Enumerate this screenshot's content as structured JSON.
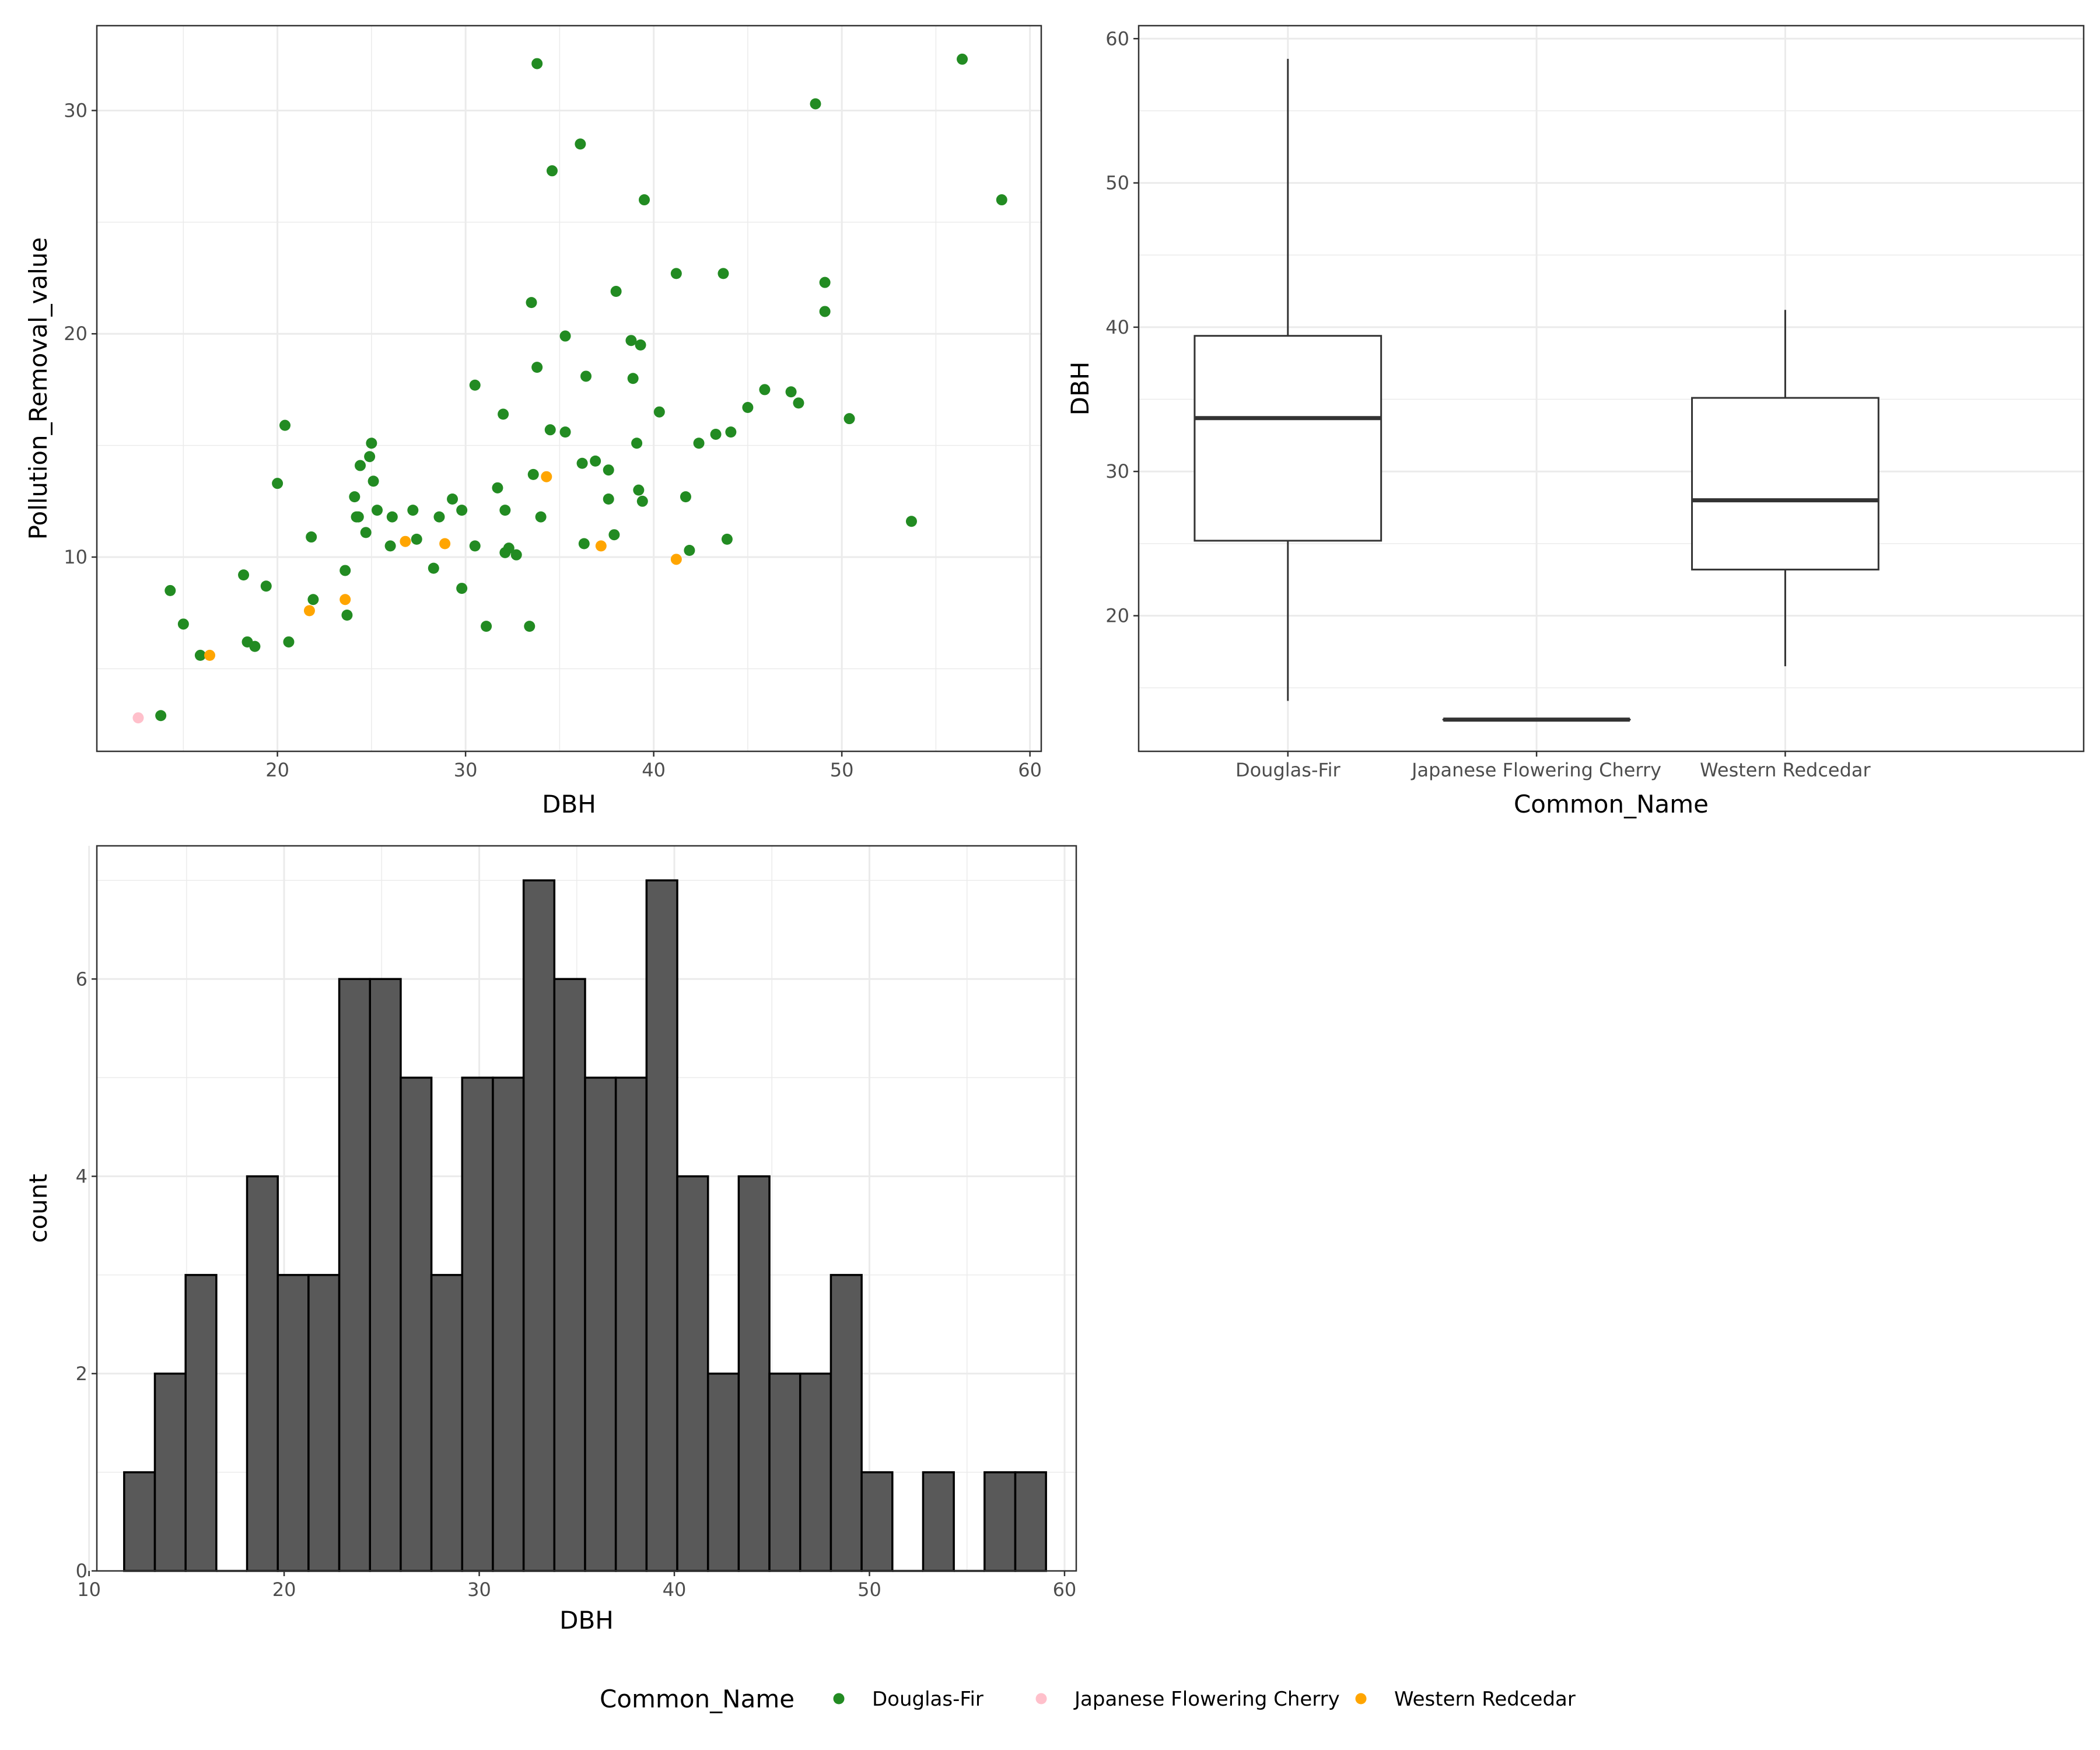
{
  "colors": {
    "douglas_fir": "#228B22",
    "cherry": "#FFC0CB",
    "redcedar": "#FFA500",
    "bar_fill": "#595959",
    "box_line": "#333333",
    "grid": "#ebebeb",
    "panel_border": "#333333"
  },
  "legend": {
    "title": "Common_Name",
    "items": [
      {
        "label": "Douglas-Fir",
        "color_key": "douglas_fir"
      },
      {
        "label": "Japanese Flowering Cherry",
        "color_key": "cherry"
      },
      {
        "label": "Western Redcedar",
        "color_key": "redcedar"
      }
    ]
  },
  "chart_data": [
    {
      "type": "scatter",
      "title": "",
      "xlabel": "DBH",
      "ylabel": "Pollution_Removal_value",
      "xlim": [
        10.4,
        60.6
      ],
      "ylim": [
        1.3,
        33.8
      ],
      "x_ticks": [
        20,
        30,
        40,
        50,
        60
      ],
      "y_ticks": [
        10,
        20,
        30
      ],
      "grid": true,
      "series": [
        {
          "name": "Douglas-Fir",
          "color_key": "douglas_fir",
          "points": [
            [
              13.8,
              2.9
            ],
            [
              14.3,
              8.5
            ],
            [
              15.0,
              7.0
            ],
            [
              15.9,
              5.6
            ],
            [
              18.2,
              9.2
            ],
            [
              18.4,
              6.2
            ],
            [
              18.8,
              6.0
            ],
            [
              19.4,
              8.7
            ],
            [
              20.0,
              13.3
            ],
            [
              20.4,
              15.9
            ],
            [
              20.6,
              6.2
            ],
            [
              21.8,
              10.9
            ],
            [
              21.9,
              8.1
            ],
            [
              23.6,
              9.4
            ],
            [
              23.7,
              7.4
            ],
            [
              24.1,
              12.7
            ],
            [
              24.2,
              11.8
            ],
            [
              24.3,
              11.8
            ],
            [
              24.4,
              14.1
            ],
            [
              24.7,
              11.1
            ],
            [
              24.9,
              14.5
            ],
            [
              25.0,
              15.1
            ],
            [
              25.1,
              13.4
            ],
            [
              25.3,
              12.1
            ],
            [
              26.0,
              10.5
            ],
            [
              26.1,
              11.8
            ],
            [
              27.2,
              12.1
            ],
            [
              27.4,
              10.8
            ],
            [
              28.3,
              9.5
            ],
            [
              28.6,
              11.8
            ],
            [
              29.3,
              12.6
            ],
            [
              29.8,
              12.1
            ],
            [
              29.8,
              8.6
            ],
            [
              30.5,
              10.5
            ],
            [
              30.5,
              17.7
            ],
            [
              31.1,
              6.9
            ],
            [
              31.7,
              13.1
            ],
            [
              32.0,
              16.4
            ],
            [
              32.1,
              12.1
            ],
            [
              32.1,
              10.2
            ],
            [
              32.3,
              10.4
            ],
            [
              32.7,
              10.1
            ],
            [
              33.4,
              6.9
            ],
            [
              33.5,
              21.4
            ],
            [
              33.6,
              13.7
            ],
            [
              33.8,
              18.5
            ],
            [
              33.8,
              32.1
            ],
            [
              34.0,
              11.8
            ],
            [
              34.5,
              15.7
            ],
            [
              34.6,
              27.3
            ],
            [
              35.3,
              15.6
            ],
            [
              35.3,
              19.9
            ],
            [
              36.1,
              28.5
            ],
            [
              36.2,
              14.2
            ],
            [
              36.3,
              10.6
            ],
            [
              36.4,
              18.1
            ],
            [
              36.9,
              14.3
            ],
            [
              37.6,
              13.9
            ],
            [
              37.6,
              12.6
            ],
            [
              37.9,
              11.0
            ],
            [
              38.0,
              21.9
            ],
            [
              38.8,
              19.7
            ],
            [
              38.9,
              18.0
            ],
            [
              39.1,
              15.1
            ],
            [
              39.2,
              13.0
            ],
            [
              39.3,
              19.5
            ],
            [
              39.4,
              12.5
            ],
            [
              39.5,
              26.0
            ],
            [
              40.3,
              16.5
            ],
            [
              41.2,
              22.7
            ],
            [
              41.7,
              12.7
            ],
            [
              41.9,
              10.3
            ],
            [
              42.4,
              15.1
            ],
            [
              43.3,
              15.5
            ],
            [
              43.7,
              22.7
            ],
            [
              43.9,
              10.8
            ],
            [
              44.1,
              15.6
            ],
            [
              45.0,
              16.7
            ],
            [
              45.9,
              17.5
            ],
            [
              47.3,
              17.4
            ],
            [
              47.7,
              16.9
            ],
            [
              48.6,
              30.3
            ],
            [
              49.1,
              21.0
            ],
            [
              49.1,
              22.3
            ],
            [
              50.4,
              16.2
            ],
            [
              53.7,
              11.6
            ],
            [
              56.4,
              32.3
            ],
            [
              58.5,
              26.0
            ]
          ]
        },
        {
          "name": "Japanese Flowering Cherry",
          "color_key": "cherry",
          "points": [
            [
              12.6,
              2.8
            ]
          ]
        },
        {
          "name": "Western Redcedar",
          "color_key": "redcedar",
          "points": [
            [
              16.4,
              5.6
            ],
            [
              21.7,
              7.6
            ],
            [
              23.6,
              8.1
            ],
            [
              26.8,
              10.7
            ],
            [
              28.9,
              10.6
            ],
            [
              34.3,
              13.6
            ],
            [
              37.2,
              10.5
            ],
            [
              41.2,
              9.9
            ]
          ]
        }
      ]
    },
    {
      "type": "box",
      "title": "",
      "xlabel": "Common_Name",
      "ylabel": "DBH",
      "ylim": [
        10.6,
        60.9
      ],
      "y_ticks": [
        20,
        30,
        40,
        50,
        60
      ],
      "categories": [
        "Douglas-Fir",
        "Japanese Flowering Cherry",
        "Western Redcedar"
      ],
      "boxes": [
        {
          "category": "Douglas-Fir",
          "min": 14.1,
          "q1": 25.2,
          "median": 33.7,
          "q3": 39.4,
          "max": 58.6
        },
        {
          "category": "Japanese Flowering Cherry",
          "min": 12.8,
          "q1": 12.8,
          "median": 12.8,
          "q3": 12.8,
          "max": 12.8
        },
        {
          "category": "Western Redcedar",
          "min": 16.5,
          "q1": 23.2,
          "median": 28.0,
          "q3": 35.1,
          "max": 41.2
        }
      ],
      "grid": true
    },
    {
      "type": "bar",
      "subtype": "histogram",
      "title": "",
      "xlabel": "DBH",
      "ylabel": "count",
      "xlim": [
        10.4,
        60.6
      ],
      "ylim": [
        0,
        7.35
      ],
      "x_ticks": [
        10,
        20,
        30,
        40,
        50,
        60
      ],
      "y_ticks": [
        0,
        2,
        4,
        6
      ],
      "bin_start": 11.8,
      "bin_width": 1.575,
      "counts": [
        1,
        2,
        3,
        0,
        4,
        3,
        3,
        6,
        6,
        5,
        3,
        5,
        5,
        7,
        6,
        5,
        5,
        7,
        4,
        2,
        4,
        2,
        2,
        3,
        1,
        0,
        1,
        0,
        1,
        1
      ],
      "grid": true
    }
  ]
}
